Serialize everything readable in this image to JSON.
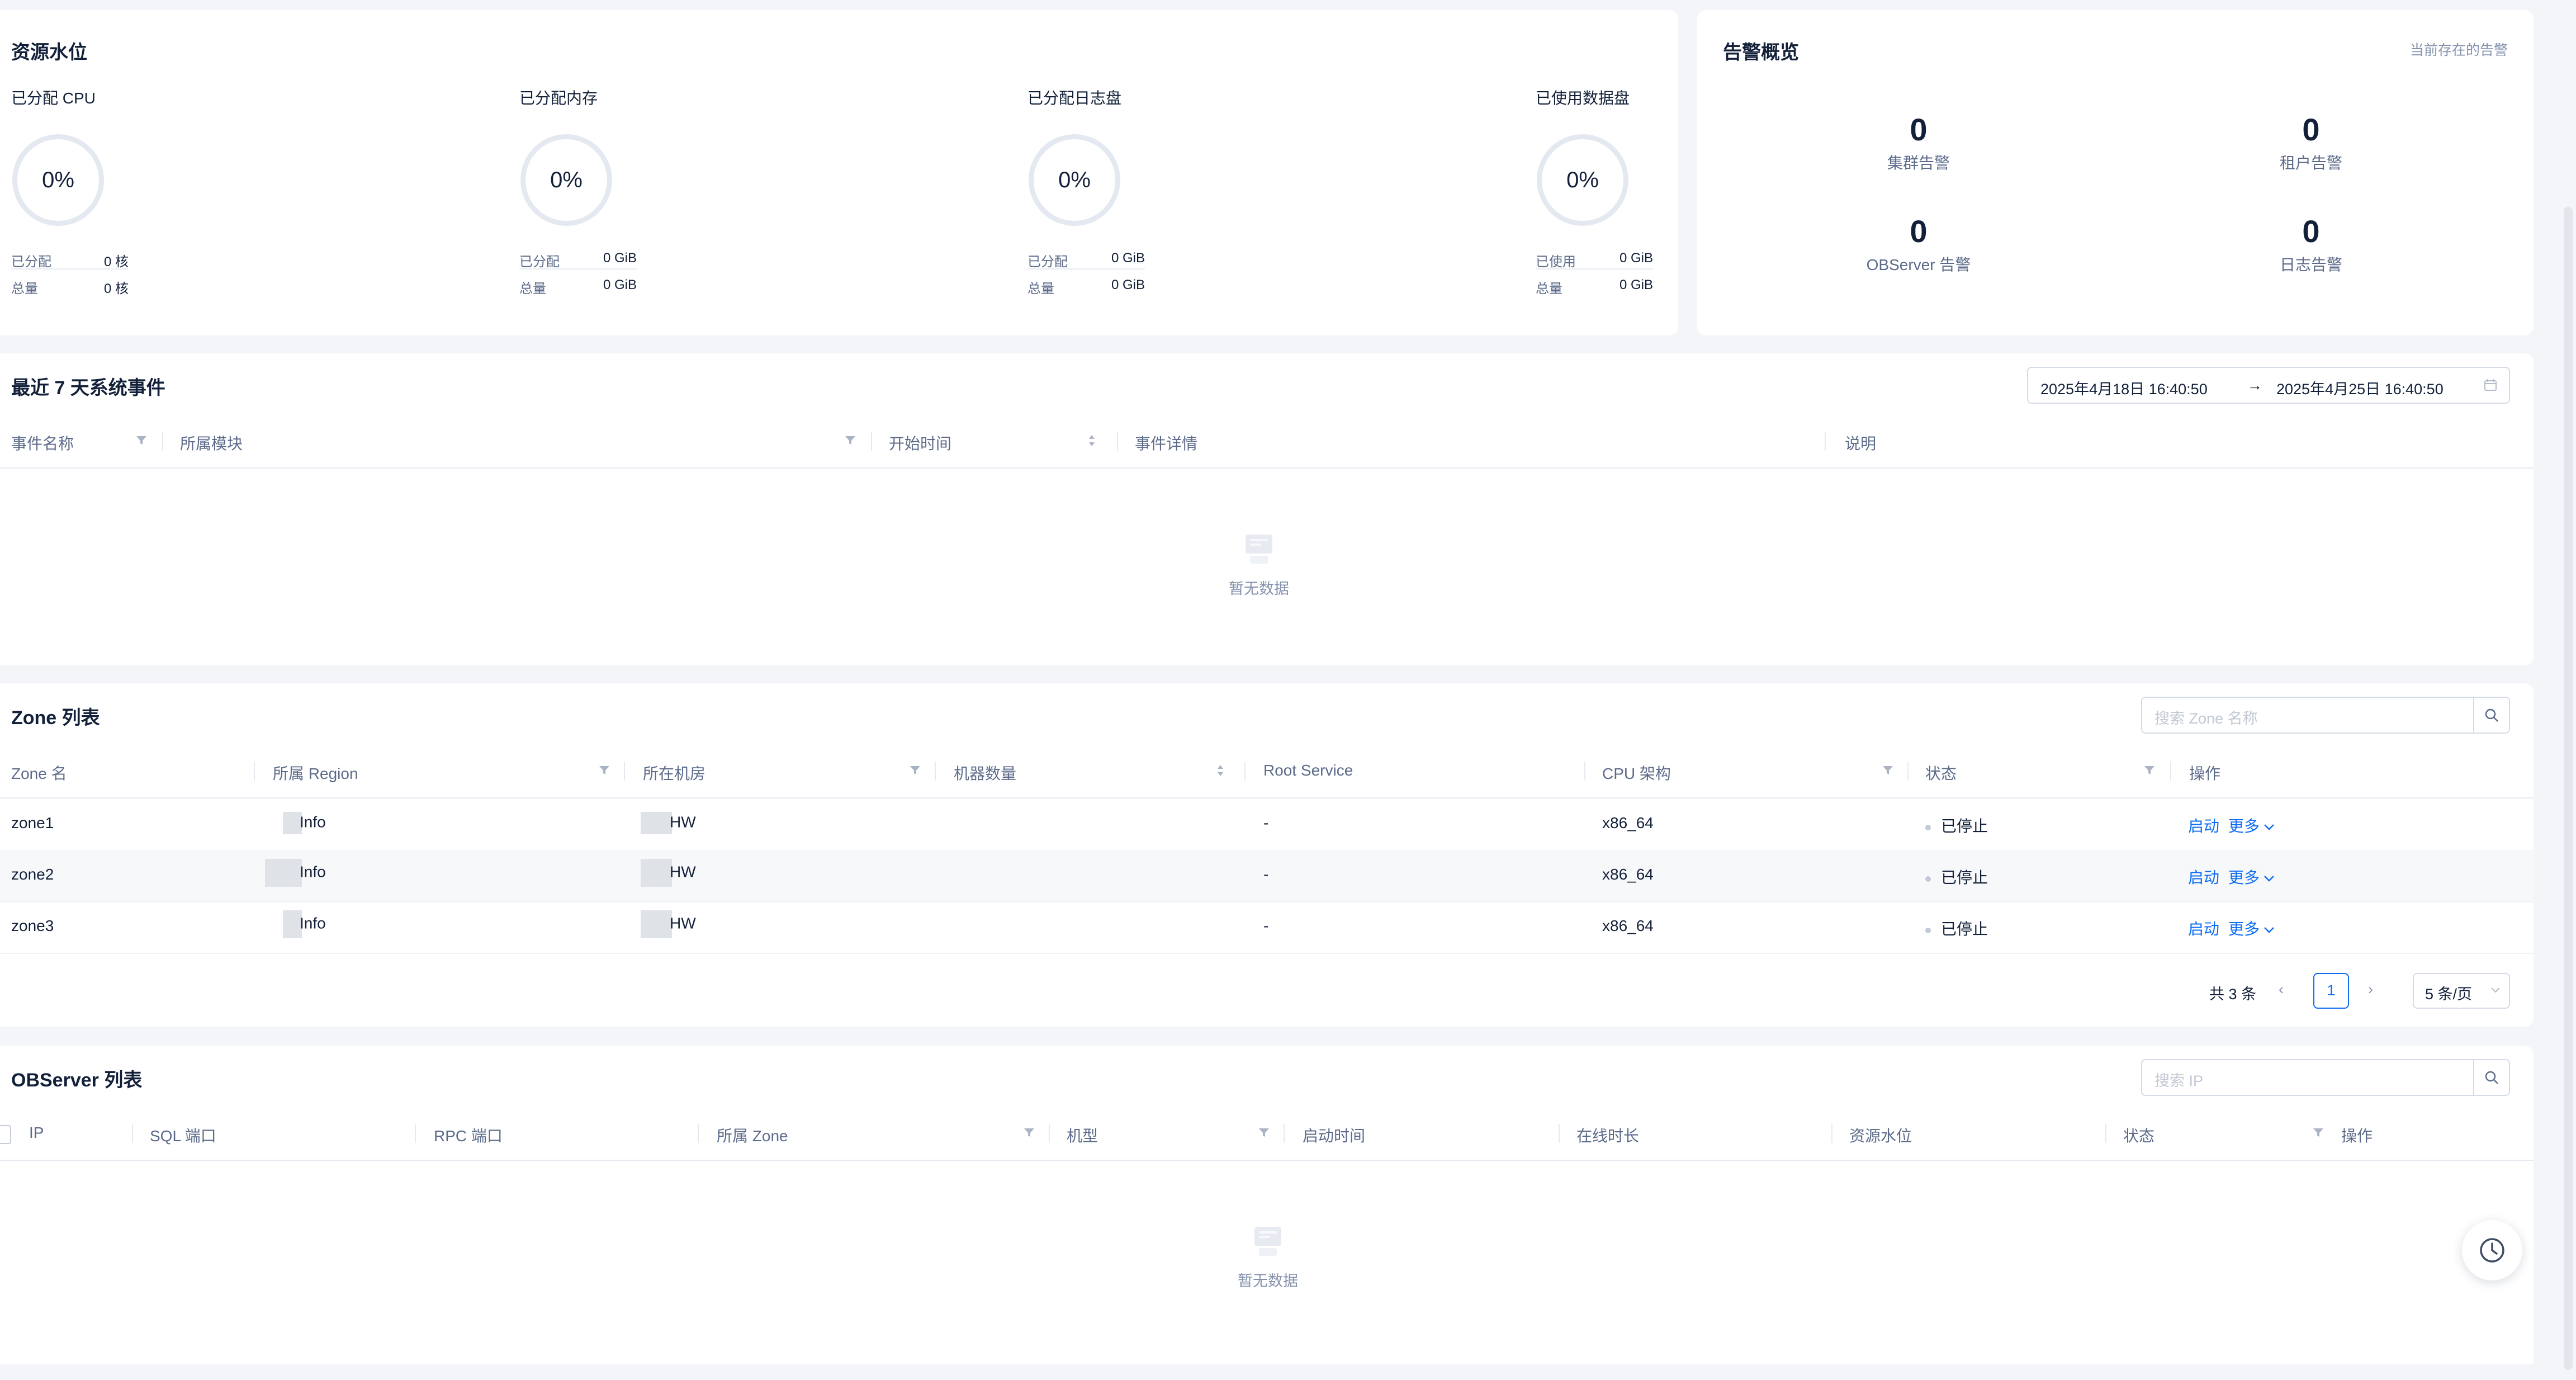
{
  "resource": {
    "title": "资源水位",
    "gauges": [
      {
        "label": "已分配 CPU",
        "percent": "0%",
        "rows": [
          {
            "k": "已分配",
            "v": "0 核"
          },
          {
            "k": "总量",
            "v": "0 核"
          }
        ]
      },
      {
        "label": "已分配内存",
        "percent": "0%",
        "rows": [
          {
            "k": "已分配",
            "v": "0 GiB"
          },
          {
            "k": "总量",
            "v": "0 GiB"
          }
        ]
      },
      {
        "label": "已分配日志盘",
        "percent": "0%",
        "rows": [
          {
            "k": "已分配",
            "v": "0 GiB"
          },
          {
            "k": "总量",
            "v": "0 GiB"
          }
        ]
      },
      {
        "label": "已使用数据盘",
        "percent": "0%",
        "rows": [
          {
            "k": "已使用",
            "v": "0 GiB"
          },
          {
            "k": "总量",
            "v": "0 GiB"
          }
        ]
      }
    ]
  },
  "alerts": {
    "title": "告警概览",
    "link": "当前存在的告警",
    "items": [
      {
        "num": "0",
        "label": "集群告警"
      },
      {
        "num": "0",
        "label": "租户告警"
      },
      {
        "num": "0",
        "label": "OBServer 告警"
      },
      {
        "num": "0",
        "label": "日志告警"
      }
    ]
  },
  "events": {
    "title": "最近 7 天系统事件",
    "date_start": "2025年4月18日 16:40:50",
    "date_sep": "→",
    "date_end": "2025年4月25日 16:40:50",
    "columns": [
      "事件名称",
      "所属模块",
      "开始时间",
      "事件详情",
      "说明"
    ],
    "empty": "暂无数据"
  },
  "zones": {
    "title": "Zone 列表",
    "search_placeholder": "搜索 Zone 名称",
    "columns": [
      "Zone 名",
      "所属 Region",
      "所在机房",
      "机器数量",
      "Root Service",
      "CPU 架构",
      "状态",
      "操作"
    ],
    "rows": [
      {
        "name": "zone1",
        "region": "Info",
        "idc": "HW",
        "count": "",
        "root": "-",
        "cpu": "x86_64",
        "status": "已停止",
        "action1": "启动",
        "action2": "更多"
      },
      {
        "name": "zone2",
        "region": "Info",
        "idc": "HW",
        "count": "",
        "root": "-",
        "cpu": "x86_64",
        "status": "已停止",
        "action1": "启动",
        "action2": "更多"
      },
      {
        "name": "zone3",
        "region": "Info",
        "idc": "HW",
        "count": "",
        "root": "-",
        "cpu": "x86_64",
        "status": "已停止",
        "action1": "启动",
        "action2": "更多"
      }
    ],
    "pager": {
      "total": "共 3 条",
      "page": "1",
      "size": "5 条/页"
    }
  },
  "observers": {
    "title": "OBServer 列表",
    "search_placeholder": "搜索 IP",
    "columns": [
      "IP",
      "SQL 端口",
      "RPC 端口",
      "所属 Zone",
      "机型",
      "启动时间",
      "在线时长",
      "资源水位",
      "状态",
      "操作"
    ],
    "empty": "暂无数据"
  },
  "icons": {
    "filter": "filter-icon",
    "sort": "sort-icon",
    "search": "search-icon",
    "calendar": "calendar-icon",
    "chevron": "chevron-down-icon",
    "clock": "clock-icon",
    "empty": "empty-box-icon"
  },
  "colors": {
    "accent": "#0d6cf2",
    "background": "#f3f5f8",
    "ring": "#e4e9f1",
    "status_dot": "#c3cad6"
  }
}
